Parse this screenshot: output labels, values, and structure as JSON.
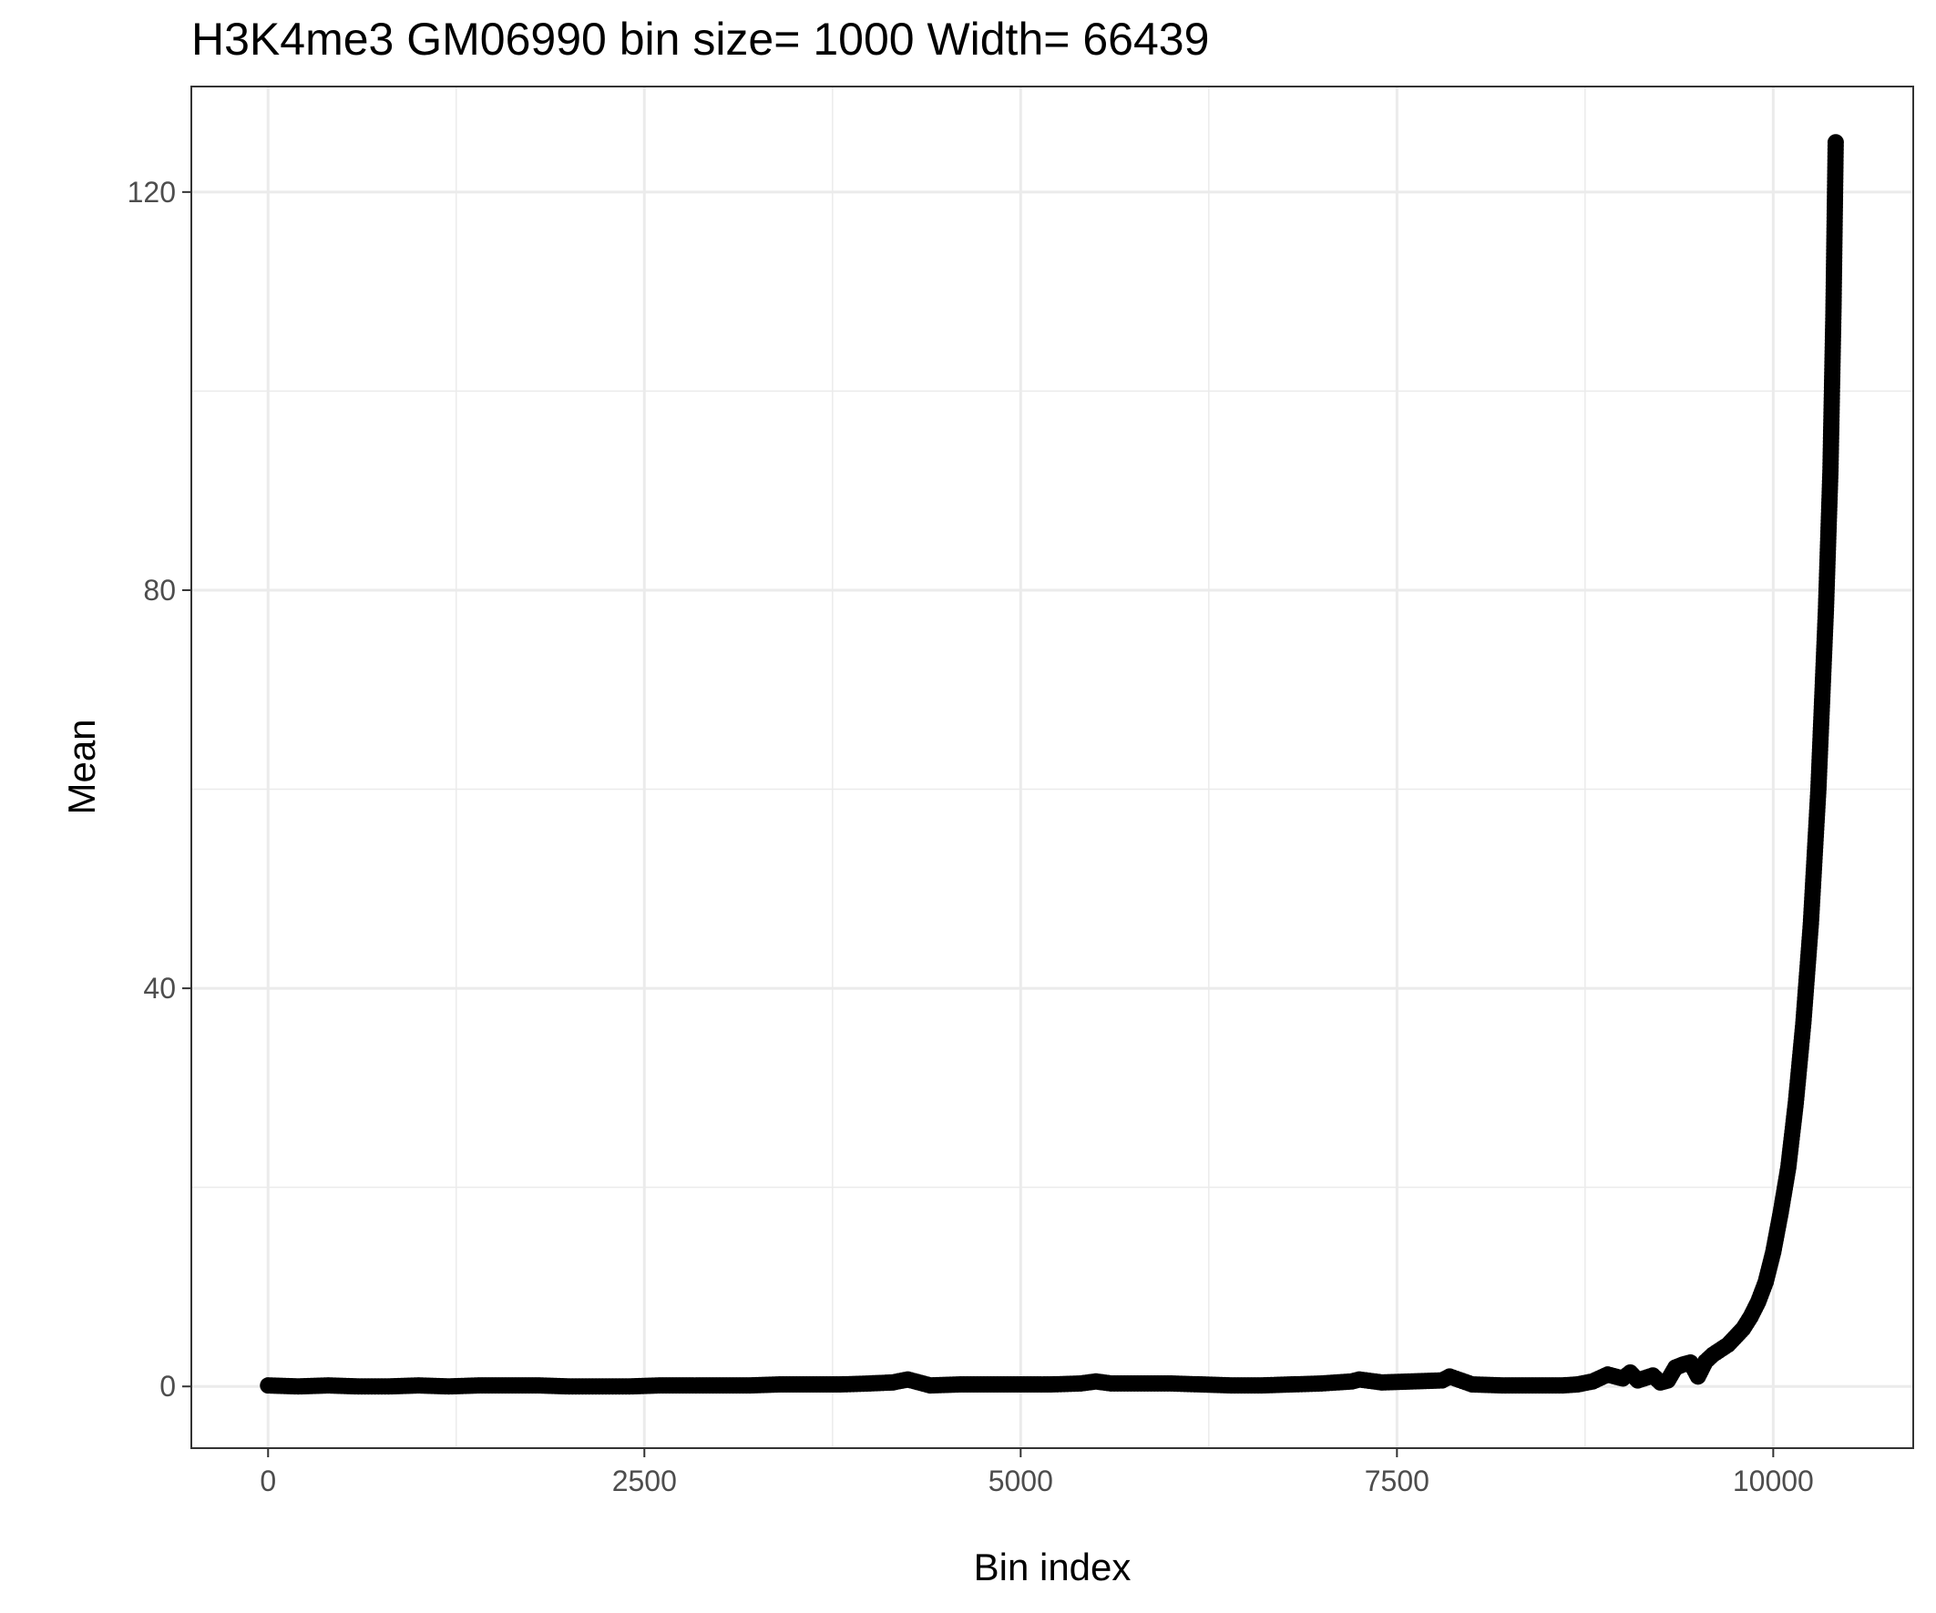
{
  "chart_data": {
    "type": "scatter",
    "title": "H3K4me3 GM06990  bin size=  1000  Width=  66439",
    "xlabel": "Bin index",
    "ylabel": "Mean",
    "xlim": [
      -510,
      10930
    ],
    "ylim": [
      -6.2,
      130.6
    ],
    "x_ticks": [
      0,
      2500,
      5000,
      7500,
      10000
    ],
    "x_tick_labels": [
      "0",
      "2500",
      "5000",
      "7500",
      "10000"
    ],
    "y_ticks": [
      0,
      40,
      80,
      120
    ],
    "y_tick_labels": [
      "0",
      "40",
      "80",
      "120"
    ],
    "grid": true,
    "legend": "none",
    "colors": {
      "points": "#000000",
      "grid": "#ebebeb",
      "panel_border": "#333333",
      "background": "#ffffff"
    },
    "series": [
      {
        "x": [
          0,
          200,
          400,
          600,
          800,
          1000,
          1200,
          1400,
          1600,
          1800,
          2000,
          2200,
          2400,
          2600,
          2800,
          3000,
          3200,
          3400,
          3600,
          3800,
          4000,
          4150,
          4250,
          4400,
          4600,
          4800,
          5000,
          5200,
          5400,
          5500,
          5600,
          5800,
          6000,
          6200,
          6400,
          6600,
          6800,
          7000,
          7200,
          7250,
          7400,
          7600,
          7800,
          7850,
          8000,
          8200,
          8400,
          8600,
          8700,
          8800,
          8900,
          9000,
          9050,
          9100,
          9200,
          9250,
          9300,
          9350,
          9400,
          9450,
          9500,
          9550,
          9600,
          9700,
          9800,
          9850,
          9900,
          9950,
          10000,
          10050,
          10100,
          10150,
          10200,
          10250,
          10300,
          10350,
          10380,
          10400,
          10415
        ],
        "y": [
          0.1,
          0.0,
          0.1,
          0.0,
          0.0,
          0.1,
          0.0,
          0.1,
          0.1,
          0.1,
          0.0,
          0.0,
          0.0,
          0.1,
          0.1,
          0.1,
          0.1,
          0.2,
          0.2,
          0.2,
          0.3,
          0.4,
          0.7,
          0.1,
          0.2,
          0.2,
          0.2,
          0.2,
          0.3,
          0.5,
          0.3,
          0.3,
          0.3,
          0.2,
          0.1,
          0.1,
          0.2,
          0.3,
          0.5,
          0.7,
          0.4,
          0.5,
          0.6,
          1.0,
          0.2,
          0.1,
          0.1,
          0.1,
          0.2,
          0.5,
          1.2,
          0.8,
          1.4,
          0.6,
          1.1,
          0.4,
          0.6,
          1.9,
          2.2,
          2.4,
          1.0,
          2.5,
          3.2,
          4.2,
          5.8,
          7.0,
          8.5,
          10.5,
          13.5,
          17.5,
          22.0,
          28.5,
          36.5,
          46.5,
          60.0,
          78.0,
          92.0,
          108.0,
          125.0
        ]
      }
    ]
  }
}
